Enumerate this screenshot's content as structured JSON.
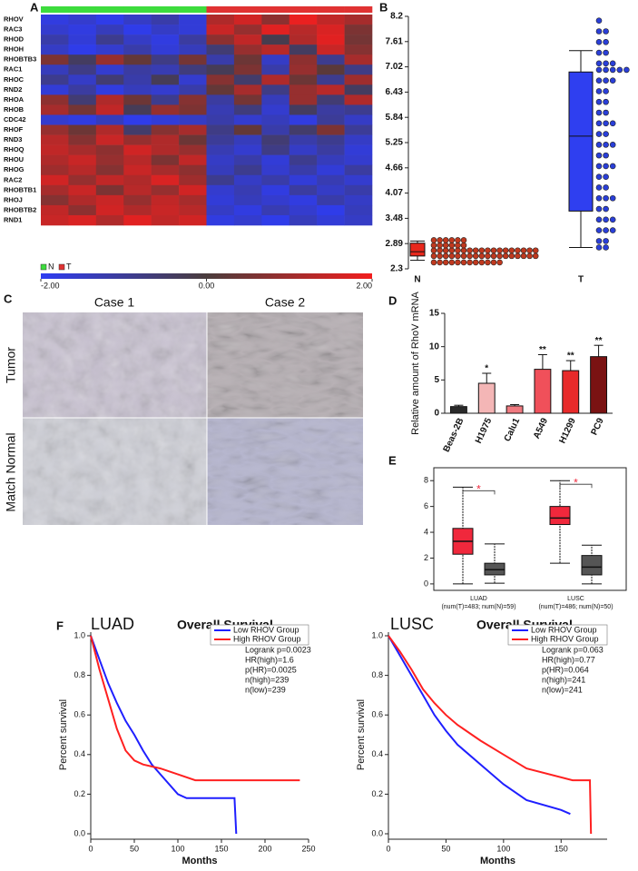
{
  "chart_data": [
    {
      "type": "heatmap",
      "panel": "A",
      "rows": [
        "RHOV",
        "RAC3",
        "RHOD",
        "RHOH",
        "RHOBTB3",
        "RAC1",
        "RHOC",
        "RND2",
        "RHOA",
        "RHOB",
        "CDC42",
        "RHOF",
        "RND3",
        "RHOQ",
        "RHOU",
        "RHOG",
        "RAC2",
        "RHOBTB1",
        "RHOJ",
        "RHOBTB2",
        "RND1"
      ],
      "columns": [
        "N",
        "N",
        "N",
        "N",
        "N",
        "N",
        "T",
        "T",
        "T",
        "T",
        "T",
        "T"
      ],
      "groups": [
        {
          "name": "N",
          "color": "#3ddc3d"
        },
        {
          "name": "T",
          "color": "#e03232"
        }
      ],
      "values": [
        [
          -1.8,
          -1.6,
          -1.9,
          -1.5,
          -1.2,
          -1.7,
          1.2,
          1.6,
          0.8,
          1.9,
          1.4,
          1.1
        ],
        [
          -1.6,
          -1.8,
          -1.4,
          -1.9,
          -1.5,
          -1.7,
          1.5,
          0.9,
          1.8,
          1.3,
          1.7,
          0.6
        ],
        [
          -1.2,
          -1.7,
          -0.9,
          -1.5,
          -1.8,
          -1.1,
          0.8,
          1.4,
          -0.2,
          1.2,
          1.8,
          0.5
        ],
        [
          -1.5,
          -1.9,
          -1.6,
          -1.2,
          -1.7,
          -1.4,
          -0.6,
          0.9,
          1.3,
          -0.4,
          1.5,
          0.7
        ],
        [
          0.6,
          -0.4,
          0.9,
          0.3,
          -0.8,
          0.5,
          -1.2,
          0.4,
          -1.5,
          0.8,
          -0.9,
          1.1
        ],
        [
          -1.4,
          -0.8,
          -1.6,
          -1.1,
          -1.3,
          -0.7,
          -0.3,
          0.6,
          -1.2,
          0.9,
          0.2,
          -0.8
        ],
        [
          -0.9,
          -1.5,
          -0.6,
          -1.2,
          -0.3,
          -1.6,
          0.7,
          -0.5,
          1.2,
          0.4,
          -0.9,
          1.0
        ],
        [
          -1.7,
          -1.1,
          -1.8,
          -1.4,
          -1.6,
          -1.2,
          0.3,
          1.1,
          -0.8,
          0.9,
          1.3,
          -0.4
        ],
        [
          0.8,
          -0.6,
          1.2,
          0.4,
          -0.9,
          0.7,
          -1.1,
          0.5,
          -1.4,
          0.9,
          -0.6,
          1.2
        ],
        [
          1.1,
          0.5,
          1.4,
          -0.3,
          0.9,
          0.6,
          -1.3,
          -0.7,
          -1.6,
          -0.4,
          -1.1,
          -0.9
        ],
        [
          -1.6,
          -1.8,
          -1.4,
          -1.9,
          -1.7,
          -1.5,
          -1.2,
          -1.6,
          -1.4,
          -1.8,
          -1.0,
          -1.5
        ],
        [
          0.9,
          0.4,
          1.2,
          -0.5,
          0.7,
          1.1,
          -0.8,
          0.3,
          -1.2,
          -0.5,
          0.6,
          -1.0
        ],
        [
          1.3,
          0.7,
          1.5,
          0.9,
          1.2,
          0.4,
          -1.0,
          -1.4,
          -0.6,
          -1.2,
          -0.9,
          -1.5
        ],
        [
          1.4,
          1.1,
          0.8,
          1.6,
          1.2,
          0.9,
          -1.3,
          -1.6,
          -0.8,
          -1.5,
          -1.1,
          -1.7
        ],
        [
          1.2,
          1.5,
          0.9,
          1.3,
          0.6,
          1.4,
          -1.5,
          -1.2,
          -1.7,
          -0.9,
          -1.4,
          -1.6
        ],
        [
          1.0,
          1.3,
          0.7,
          1.5,
          1.1,
          0.8,
          -1.4,
          -0.9,
          -1.6,
          -1.2,
          -1.7,
          -1.1
        ],
        [
          1.6,
          0.9,
          1.4,
          1.2,
          1.7,
          1.0,
          -0.9,
          -1.5,
          -1.2,
          -1.7,
          -1.3,
          -1.6
        ],
        [
          1.1,
          1.5,
          0.6,
          1.3,
          0.9,
          1.6,
          -1.6,
          -1.3,
          -1.8,
          -1.1,
          -1.5,
          -1.2
        ],
        [
          0.7,
          1.2,
          1.5,
          0.9,
          1.4,
          1.1,
          -1.7,
          -1.4,
          -1.6,
          -1.8,
          -1.2,
          -1.5
        ],
        [
          1.4,
          0.8,
          1.6,
          1.2,
          1.5,
          1.3,
          -1.5,
          -1.8,
          -1.3,
          -1.6,
          -1.9,
          -1.4
        ],
        [
          1.5,
          1.7,
          1.2,
          1.8,
          1.4,
          1.6,
          -1.8,
          -1.6,
          -1.9,
          -1.4,
          -1.7,
          -1.5
        ]
      ],
      "zlim": [
        -2,
        2
      ],
      "colorscale": [
        "#2e3cf2",
        "#4a3c3c",
        "#f21e1e"
      ],
      "zticks": [
        {
          "value": -2,
          "label": "-2.00"
        },
        {
          "value": 0,
          "label": "0.00"
        },
        {
          "value": 2,
          "label": "2.00"
        }
      ]
    },
    {
      "type": "box_dot",
      "panel": "B",
      "categories": [
        "N",
        "T"
      ],
      "colors": [
        "#e8281c",
        "#2f3ff0"
      ],
      "dot_colors": [
        "#c0391f",
        "#2a3fd8"
      ],
      "boxes": [
        {
          "min": 2.5,
          "q1": 2.6,
          "median": 2.7,
          "q3": 2.9,
          "max": 2.95
        },
        {
          "min": 2.8,
          "q1": 3.65,
          "median": 5.4,
          "q3": 6.9,
          "max": 7.4
        }
      ],
      "dot_rows": [
        [
          {
            "y": 2.45,
            "count": 12
          },
          {
            "y": 2.6,
            "count": 18
          },
          {
            "y": 2.73,
            "count": 18
          },
          {
            "y": 2.85,
            "count": 6
          },
          {
            "y": 2.97,
            "count": 6
          }
        ],
        [
          {
            "y": 8.1,
            "count": 1
          },
          {
            "y": 7.85,
            "count": 2
          },
          {
            "y": 7.6,
            "count": 2
          },
          {
            "y": 7.35,
            "count": 2
          },
          {
            "y": 7.1,
            "count": 3
          },
          {
            "y": 6.95,
            "count": 5
          },
          {
            "y": 6.7,
            "count": 3
          },
          {
            "y": 6.45,
            "count": 2
          },
          {
            "y": 6.2,
            "count": 2
          },
          {
            "y": 5.95,
            "count": 2
          },
          {
            "y": 5.7,
            "count": 3
          },
          {
            "y": 5.45,
            "count": 2
          },
          {
            "y": 5.2,
            "count": 3
          },
          {
            "y": 4.95,
            "count": 2
          },
          {
            "y": 4.7,
            "count": 3
          },
          {
            "y": 4.45,
            "count": 2
          },
          {
            "y": 4.2,
            "count": 2
          },
          {
            "y": 3.95,
            "count": 3
          },
          {
            "y": 3.7,
            "count": 2
          },
          {
            "y": 3.45,
            "count": 3
          },
          {
            "y": 3.2,
            "count": 3
          },
          {
            "y": 2.95,
            "count": 2
          },
          {
            "y": 2.8,
            "count": 2
          }
        ]
      ],
      "ylim": [
        2.3,
        8.2
      ],
      "yticks": [
        2.3,
        2.89,
        3.48,
        4.07,
        4.66,
        5.25,
        5.84,
        6.43,
        7.02,
        7.61,
        8.2
      ]
    },
    {
      "type": "bar",
      "panel": "D",
      "ylabel": "Relative amount of RhoV mRNA",
      "categories": [
        "Beas-2B",
        "H1975",
        "Calu1",
        "A549",
        "H1299",
        "PC9"
      ],
      "values": [
        1.0,
        4.5,
        1.1,
        6.6,
        6.4,
        8.5
      ],
      "errors": [
        0.2,
        1.5,
        0.2,
        2.2,
        1.5,
        1.7
      ],
      "significance": [
        null,
        "*",
        null,
        "**",
        "**",
        "**"
      ],
      "colors": [
        "#2a2a2a",
        "#f4b6b6",
        "#f07a80",
        "#f0505a",
        "#e82a2a",
        "#7a1212"
      ],
      "ylim": [
        0,
        15
      ],
      "yticks": [
        0,
        5,
        10,
        15
      ]
    },
    {
      "type": "box",
      "panel": "E",
      "categories": [
        "LUAD",
        "LUSC"
      ],
      "sublabels": [
        "(num(T)=483; num(N)=59)",
        "(num(T)=486; num(N)=50)"
      ],
      "colors": [
        "#f0283c",
        "#555555"
      ],
      "boxes": [
        [
          {
            "min": 0,
            "q1": 2.3,
            "median": 3.3,
            "q3": 4.3,
            "max": 7.5
          },
          {
            "min": 0.05,
            "q1": 0.7,
            "median": 1.1,
            "q3": 1.6,
            "max": 3.1
          }
        ],
        [
          {
            "min": 1.6,
            "q1": 4.6,
            "median": 5.1,
            "q3": 6.0,
            "max": 8.0
          },
          {
            "min": 0,
            "q1": 0.7,
            "median": 1.3,
            "q3": 2.2,
            "max": 3.0
          }
        ]
      ],
      "significance": [
        "*",
        "*"
      ],
      "significance_color": "#f0283c",
      "ylim": [
        -0.5,
        9
      ],
      "yticks": [
        0,
        2,
        4,
        6,
        8
      ]
    },
    {
      "type": "line",
      "panel": "F",
      "title": "LUAD",
      "subtitle": "Overall Survival",
      "xlabel": "Months",
      "ylabel": "Percent survival",
      "series": [
        {
          "name": "Low RHOV Group",
          "color": "#1f1fff",
          "x": [
            0,
            10,
            20,
            30,
            40,
            50,
            60,
            70,
            80,
            100,
            110,
            165,
            167
          ],
          "values": [
            1,
            0.88,
            0.76,
            0.66,
            0.57,
            0.5,
            0.42,
            0.35,
            0.3,
            0.2,
            0.18,
            0.18,
            0
          ]
        },
        {
          "name": "High RHOV Group",
          "color": "#ff2020",
          "x": [
            0,
            10,
            20,
            30,
            40,
            50,
            60,
            80,
            100,
            120,
            240
          ],
          "values": [
            1,
            0.83,
            0.68,
            0.53,
            0.42,
            0.37,
            0.35,
            0.33,
            0.3,
            0.27,
            0.27
          ]
        }
      ],
      "annotations": [
        "Logrank p=0.0023",
        "HR(high)=1.6",
        "p(HR)=0.0025",
        "n(high)=239",
        "n(low)=239"
      ],
      "xlim": [
        0,
        250
      ],
      "xticks": [
        0,
        50,
        100,
        150,
        200,
        250
      ],
      "ylim": [
        0,
        1
      ],
      "yticks": [
        {
          "value": 0,
          "label": "0.0"
        },
        0.2,
        0.4,
        0.6,
        0.8,
        {
          "value": 1,
          "label": "1.0"
        }
      ]
    },
    {
      "type": "line",
      "title": "LUSC",
      "subtitle": "Overall Survival",
      "xlabel": "Months",
      "ylabel": "Percent survival",
      "series": [
        {
          "name": "Low RHOV Group",
          "color": "#1f1fff",
          "x": [
            0,
            10,
            20,
            30,
            40,
            50,
            60,
            80,
            100,
            120,
            150,
            158
          ],
          "values": [
            1,
            0.9,
            0.8,
            0.7,
            0.6,
            0.52,
            0.45,
            0.35,
            0.25,
            0.17,
            0.12,
            0.1
          ]
        },
        {
          "name": "High RHOV Group",
          "color": "#ff2020",
          "x": [
            0,
            10,
            20,
            30,
            40,
            50,
            60,
            80,
            100,
            120,
            160,
            175,
            176
          ],
          "values": [
            1,
            0.92,
            0.83,
            0.73,
            0.66,
            0.6,
            0.55,
            0.47,
            0.4,
            0.33,
            0.27,
            0.27,
            0
          ]
        }
      ],
      "annotations": [
        "Logrank p=0.063",
        "HR(high)=0.77",
        "p(HR)=0.064",
        "n(high)=241",
        "n(low)=241"
      ],
      "xlim": [
        0,
        190
      ],
      "xticks": [
        0,
        50,
        100,
        150
      ],
      "ylim": [
        0,
        1
      ],
      "yticks": [
        {
          "value": 0,
          "label": "0.0"
        },
        0.2,
        0.4,
        0.6,
        0.8,
        {
          "value": 1,
          "label": "1.0"
        }
      ]
    }
  ],
  "panel_c": {
    "label": "C",
    "columns": [
      "Case 1",
      "Case 2"
    ],
    "rows": [
      "Tumor",
      "Match Normal"
    ]
  }
}
